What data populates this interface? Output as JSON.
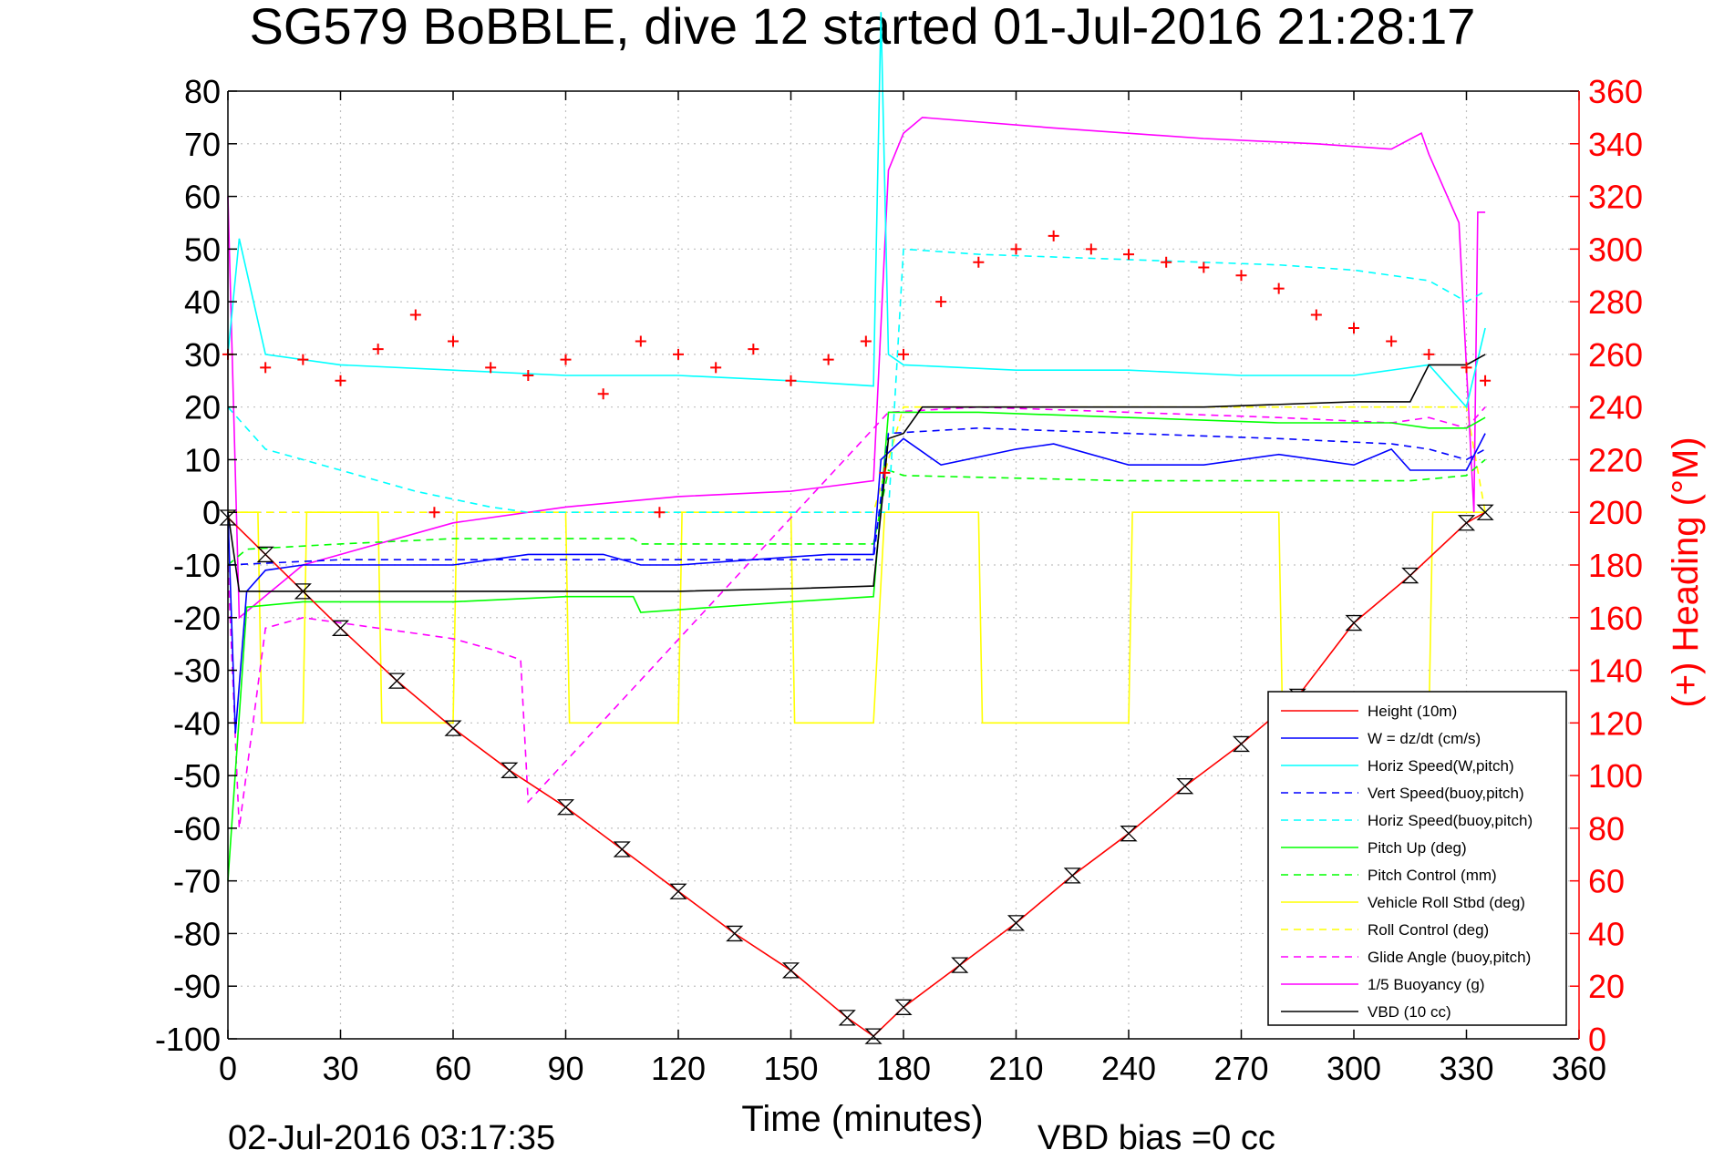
{
  "chart_data": {
    "type": "line",
    "title": "SG579 BoBBLE, dive 12 started 01-Jul-2016 21:28:17",
    "xlabel": "Time (minutes)",
    "ylabel_right": "(+) Heading (°M)",
    "footer_left": "02-Jul-2016 03:17:35",
    "footer_mid": "VBD bias =0 cc",
    "xlim": [
      0,
      360
    ],
    "ylim": [
      -100,
      80
    ],
    "ylim_right": [
      0,
      360
    ],
    "grid": true,
    "legend_position": "bottom-right",
    "xticks": [
      "0",
      "30",
      "60",
      "90",
      "120",
      "150",
      "180",
      "210",
      "240",
      "270",
      "300",
      "330",
      "360"
    ],
    "yticks": [
      "80",
      "70",
      "60",
      "50",
      "40",
      "30",
      "20",
      "10",
      "0",
      "-10",
      "-20",
      "-30",
      "-40",
      "-50",
      "-60",
      "-70",
      "-80",
      "-90",
      "-100"
    ],
    "yticks_right": [
      "360",
      "340",
      "320",
      "300",
      "280",
      "260",
      "240",
      "220",
      "200",
      "180",
      "160",
      "140",
      "120",
      "100",
      "80",
      "60",
      "40",
      "20",
      "0"
    ],
    "colors": {
      "right_axis": "#ff0000",
      "height": "#ff0000",
      "w": "#0000ff",
      "horiz_speed_w": "#00ffff",
      "vert_speed_buoy": "#0000ff",
      "horiz_speed_buoy": "#00ffff",
      "pitch_up": "#00ff00",
      "pitch_control": "#00ff00",
      "roll": "#ffff00",
      "roll_control": "#ffff00",
      "glide_angle": "#ff00ff",
      "buoyancy": "#ff00ff",
      "vbd": "#000000",
      "heading": "#ff0000"
    },
    "series": [
      {
        "name": "Height (10m)",
        "style": "solid",
        "color": "#ff0000",
        "marker": "hourglass",
        "x": [
          0,
          10,
          20,
          30,
          45,
          60,
          75,
          90,
          105,
          120,
          135,
          150,
          165,
          172,
          180,
          195,
          210,
          225,
          240,
          255,
          270,
          285,
          300,
          315,
          330,
          335
        ],
        "y": [
          -1,
          -8,
          -15,
          -22,
          -32,
          -41,
          -49,
          -56,
          -64,
          -72,
          -80,
          -87,
          -96,
          -99.5,
          -94,
          -86,
          -78,
          -69,
          -61,
          -52,
          -44,
          -35,
          -21,
          -12,
          -2,
          0
        ]
      },
      {
        "name": "W = dz/dt (cm/s)",
        "style": "solid",
        "color": "#0000ff",
        "x": [
          0,
          2,
          5,
          10,
          20,
          40,
          60,
          80,
          100,
          110,
          120,
          140,
          160,
          172,
          174,
          180,
          190,
          210,
          220,
          240,
          260,
          280,
          300,
          310,
          315,
          330,
          335
        ],
        "y": [
          0,
          -42,
          -15,
          -11,
          -10,
          -10,
          -10,
          -8,
          -8,
          -10,
          -10,
          -9,
          -8,
          -8,
          10,
          14,
          9,
          12,
          13,
          9,
          9,
          11,
          9,
          12,
          8,
          8,
          15
        ]
      },
      {
        "name": "Horiz Speed(W,pitch)",
        "style": "solid",
        "color": "#00ffff",
        "x": [
          0,
          3,
          10,
          30,
          60,
          90,
          120,
          150,
          172,
          174,
          176,
          180,
          210,
          240,
          270,
          300,
          320,
          330,
          335
        ],
        "y": [
          30,
          52,
          30,
          28,
          27,
          26,
          26,
          25,
          24,
          95,
          30,
          28,
          27,
          27,
          26,
          26,
          28,
          20,
          35
        ]
      },
      {
        "name": "Vert Speed(buoy,pitch)",
        "style": "dashed",
        "color": "#0000ff",
        "x": [
          0,
          30,
          60,
          90,
          120,
          150,
          172,
          176,
          200,
          240,
          280,
          310,
          320,
          330,
          335
        ],
        "y": [
          -10,
          -9,
          -9,
          -9,
          -9,
          -9,
          -9,
          15,
          16,
          15,
          14,
          13,
          12,
          10,
          12
        ]
      },
      {
        "name": "Horiz Speed(buoy,pitch)",
        "style": "dashed",
        "color": "#00ffff",
        "x": [
          0,
          10,
          30,
          50,
          70,
          80,
          176,
          180,
          200,
          240,
          280,
          300,
          320,
          330,
          335
        ],
        "y": [
          20,
          12,
          8,
          4,
          1,
          0,
          0,
          50,
          49,
          48,
          47,
          46,
          44,
          40,
          42
        ]
      },
      {
        "name": "Pitch Up (deg)",
        "style": "solid",
        "color": "#00ff00",
        "x": [
          0,
          5,
          20,
          40,
          60,
          90,
          108,
          110,
          130,
          150,
          172,
          176,
          200,
          240,
          280,
          310,
          320,
          330,
          335
        ],
        "y": [
          -70,
          -18,
          -17,
          -17,
          -17,
          -16,
          -16,
          -19,
          -18,
          -17,
          -16,
          19,
          19,
          18,
          17,
          17,
          16,
          16,
          18
        ]
      },
      {
        "name": "Pitch Control (mm)",
        "style": "dashed",
        "color": "#00ff00",
        "x": [
          0,
          5,
          30,
          60,
          108,
          110,
          172,
          176,
          180,
          240,
          300,
          315,
          330,
          335
        ],
        "y": [
          -10,
          -7,
          -6,
          -5,
          -5,
          -6,
          -6,
          8,
          7,
          6,
          6,
          6,
          7,
          10
        ]
      },
      {
        "name": "Vehicle Roll Stbd (deg)",
        "style": "solid",
        "color": "#ffff00",
        "x": [
          0,
          8,
          9,
          20,
          21,
          40,
          41,
          60,
          61,
          90,
          91,
          120,
          121,
          150,
          151,
          172,
          175,
          200,
          201,
          240,
          241,
          280,
          281,
          320,
          321,
          335
        ],
        "y": [
          0,
          0,
          -40,
          -40,
          0,
          0,
          -40,
          -40,
          0,
          0,
          -40,
          -40,
          0,
          0,
          -40,
          -40,
          0,
          0,
          -40,
          -40,
          0,
          0,
          -40,
          -40,
          0,
          0
        ]
      },
      {
        "name": "Roll Control (deg)",
        "style": "dashed",
        "color": "#ffff00",
        "x": [
          0,
          30,
          60,
          90,
          120,
          150,
          172,
          180,
          210,
          240,
          270,
          300,
          330,
          335
        ],
        "y": [
          0,
          0,
          0,
          0,
          0,
          0,
          0,
          20,
          20,
          20,
          20,
          20,
          20,
          0
        ]
      },
      {
        "name": "Glide Angle (buoy,pitch)",
        "style": "dashed",
        "color": "#ff00ff",
        "x": [
          0,
          3,
          10,
          20,
          40,
          60,
          70,
          78,
          80,
          176,
          200,
          240,
          280,
          310,
          320,
          330,
          335
        ],
        "y": [
          -10,
          -60,
          -22,
          -20,
          -22,
          -24,
          -26,
          -28,
          -55,
          19,
          20,
          19,
          18,
          17,
          18,
          16,
          20
        ]
      },
      {
        "name": "1/5 Buoyancy (g)",
        "style": "solid",
        "color": "#ff00ff",
        "x": [
          0,
          3,
          20,
          60,
          90,
          120,
          150,
          172,
          176,
          180,
          185,
          220,
          260,
          290,
          310,
          318,
          320,
          328,
          332,
          333,
          335
        ],
        "y": [
          60,
          -20,
          -10,
          -2,
          1,
          3,
          4,
          6,
          65,
          72,
          75,
          73,
          71,
          70,
          69,
          72,
          68,
          55,
          0,
          57,
          57
        ]
      },
      {
        "name": "VBD (10 cc)",
        "style": "solid",
        "color": "#000000",
        "x": [
          0,
          3,
          30,
          60,
          90,
          120,
          150,
          172,
          176,
          180,
          185,
          220,
          260,
          300,
          315,
          320,
          330,
          335
        ],
        "y": [
          0,
          -15,
          -15,
          -15,
          -15,
          -15,
          -14.5,
          -14,
          14,
          15,
          20,
          20,
          20,
          21,
          21,
          28,
          28,
          30
        ]
      },
      {
        "name": "Heading",
        "style": "markers",
        "color": "#ff0000",
        "marker": "plus",
        "axis": "right",
        "x": [
          0,
          10,
          20,
          30,
          40,
          50,
          55,
          60,
          70,
          80,
          90,
          100,
          110,
          115,
          120,
          130,
          140,
          150,
          160,
          170,
          175,
          180,
          190,
          200,
          210,
          220,
          230,
          240,
          250,
          260,
          270,
          280,
          290,
          300,
          310,
          320,
          330,
          335
        ],
        "y": [
          260,
          255,
          258,
          250,
          262,
          275,
          200,
          265,
          255,
          252,
          258,
          245,
          265,
          200,
          260,
          255,
          262,
          250,
          258,
          265,
          215,
          260,
          280,
          295,
          300,
          305,
          300,
          298,
          295,
          293,
          290,
          285,
          275,
          270,
          265,
          260,
          255,
          250
        ]
      }
    ]
  }
}
